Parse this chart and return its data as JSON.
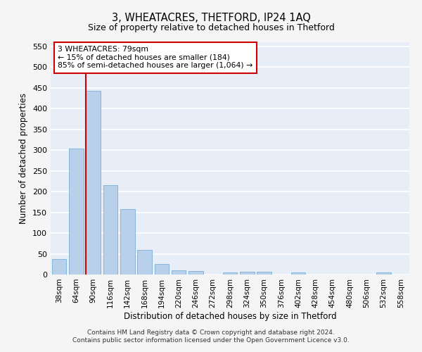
{
  "title": "3, WHEATACRES, THETFORD, IP24 1AQ",
  "subtitle": "Size of property relative to detached houses in Thetford",
  "xlabel": "Distribution of detached houses by size in Thetford",
  "ylabel": "Number of detached properties",
  "bins": [
    "38sqm",
    "64sqm",
    "90sqm",
    "116sqm",
    "142sqm",
    "168sqm",
    "194sqm",
    "220sqm",
    "246sqm",
    "272sqm",
    "298sqm",
    "324sqm",
    "350sqm",
    "376sqm",
    "402sqm",
    "428sqm",
    "454sqm",
    "480sqm",
    "506sqm",
    "532sqm",
    "558sqm"
  ],
  "values": [
    37,
    303,
    443,
    216,
    158,
    59,
    25,
    11,
    9,
    0,
    5,
    6,
    6,
    0,
    5,
    0,
    0,
    0,
    0,
    5,
    0
  ],
  "bar_color": "#b8d0ea",
  "bar_edge_color": "#7aafd4",
  "annotation_text_line1": "3 WHEATACRES: 79sqm",
  "annotation_text_line2": "← 15% of detached houses are smaller (184)",
  "annotation_text_line3": "85% of semi-detached houses are larger (1,064) →",
  "annotation_box_color": "#ffffff",
  "annotation_box_edge": "#cc0000",
  "vline_color": "#cc0000",
  "footer_line1": "Contains HM Land Registry data © Crown copyright and database right 2024.",
  "footer_line2": "Contains public sector information licensed under the Open Government Licence v3.0.",
  "ylim": [
    0,
    560
  ],
  "yticks": [
    0,
    50,
    100,
    150,
    200,
    250,
    300,
    350,
    400,
    450,
    500,
    550
  ],
  "bg_color": "#e8eef8",
  "grid_color": "#ffffff",
  "fig_bg_color": "#f5f5f5"
}
